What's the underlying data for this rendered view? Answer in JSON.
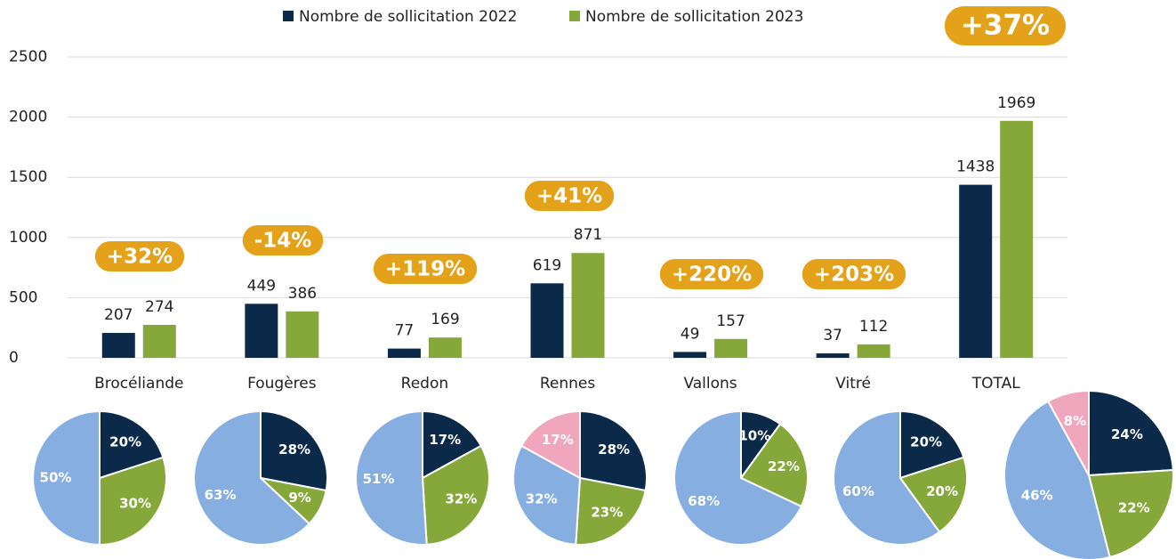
{
  "chart_data": [
    {
      "type": "bar",
      "categories": [
        "Brocéliande",
        "Fougères",
        "Redon",
        "Rennes",
        "Vallons",
        "Vitré",
        "TOTAL"
      ],
      "series": [
        {
          "name": "Nombre de sollicitation 2022",
          "color": "#0b2a4a",
          "values": [
            207,
            449,
            77,
            619,
            49,
            37,
            1438
          ]
        },
        {
          "name": "Nombre de sollicitation 2023",
          "color": "#86a83a",
          "values": [
            274,
            386,
            169,
            871,
            157,
            112,
            1969
          ]
        }
      ],
      "annotations": [
        "+32%",
        "-14%",
        "+119%",
        "+41%",
        "+220%",
        "+203%",
        "+37%"
      ],
      "annotation_color": "#e3a21a",
      "ylim": [
        0,
        2500
      ],
      "yticks": [
        0,
        500,
        1000,
        1500,
        2000,
        2500
      ],
      "grid": true,
      "legend": "top"
    },
    {
      "type": "pie",
      "values": [
        20,
        30,
        50
      ],
      "value_labels": [
        "20%",
        "30%",
        "50%"
      ],
      "colors": [
        "#0b2a4a",
        "#86a83a",
        "#86aee0"
      ]
    },
    {
      "type": "pie",
      "values": [
        28,
        9,
        63
      ],
      "value_labels": [
        "28%",
        "9%",
        "63%"
      ],
      "colors": [
        "#0b2a4a",
        "#86a83a",
        "#86aee0"
      ]
    },
    {
      "type": "pie",
      "values": [
        17,
        32,
        51
      ],
      "value_labels": [
        "17%",
        "32%",
        "51%"
      ],
      "colors": [
        "#0b2a4a",
        "#86a83a",
        "#86aee0"
      ]
    },
    {
      "type": "pie",
      "values": [
        28,
        23,
        32,
        17
      ],
      "value_labels": [
        "28%",
        "23%",
        "32%",
        "17%"
      ],
      "colors": [
        "#0b2a4a",
        "#86a83a",
        "#86aee0",
        "#f0a7bd"
      ]
    },
    {
      "type": "pie",
      "values": [
        10,
        22,
        68
      ],
      "value_labels": [
        "10%",
        "22%",
        "68%"
      ],
      "colors": [
        "#0b2a4a",
        "#86a83a",
        "#86aee0"
      ]
    },
    {
      "type": "pie",
      "values": [
        20,
        20,
        60
      ],
      "value_labels": [
        "20%",
        "20%",
        "60%"
      ],
      "colors": [
        "#0b2a4a",
        "#86a83a",
        "#86aee0"
      ]
    },
    {
      "type": "pie",
      "values": [
        24,
        22,
        46,
        8
      ],
      "value_labels": [
        "24%",
        "22%",
        "46%",
        "8%"
      ],
      "colors": [
        "#0b2a4a",
        "#86a83a",
        "#86aee0",
        "#f0a7bd"
      ]
    }
  ]
}
